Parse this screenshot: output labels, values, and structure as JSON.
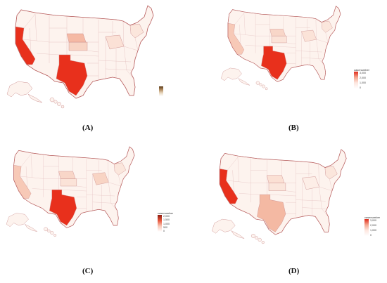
{
  "panels": [
    {
      "label": "(A)",
      "legend": {
        "title": "",
        "ticks": [
          "",
          "",
          "",
          ""
        ],
        "palette": "brown"
      },
      "fill": {
        "west_coast": "#e8301c",
        "texas": "#e8301c",
        "nebraska": "#f5b9a4",
        "kansas": "#f8d4c4",
        "ohio_valley": "#fbe1d6",
        "northeast": "#fbe6dc",
        "rest": "#fdf3ee"
      }
    },
    {
      "label": "(B)",
      "legend": {
        "title": "casenumber",
        "ticks": [
          "3,000",
          "2,000",
          "1,000",
          "0"
        ],
        "palette": "red"
      },
      "fill": {
        "west_coast": "#f7c9b7",
        "texas": "#e8301c",
        "nebraska": "#f8d6c8",
        "kansas": "#fbe3d8",
        "ohio_valley": "#fbe3d8",
        "northeast": "#fbe6dc",
        "rest": "#fdf3ee"
      }
    },
    {
      "label": "(C)",
      "legend": {
        "title": "casenumber",
        "ticks": [
          "2,000",
          "1,500",
          "1,000",
          "500",
          "0"
        ],
        "palette": "darkred"
      },
      "fill": {
        "west_coast": "#f7c9b7",
        "texas": "#e8301c",
        "nebraska": "#f8d6c8",
        "kansas": "#fbe3d8",
        "ohio_valley": "#f8d4c4",
        "northeast": "#fbe6dc",
        "rest": "#fdf3ee"
      }
    },
    {
      "label": "(D)",
      "legend": {
        "title": "casenumber",
        "ticks": [
          "3,000",
          "2,000",
          "1,000",
          "0"
        ],
        "palette": "red"
      },
      "fill": {
        "west_coast": "#e8301c",
        "texas": "#f4b9a3",
        "nebraska": "#fbe0d4",
        "kansas": "#fbe6dc",
        "ohio_valley": "#fdeee7",
        "northeast": "#fbe6dc",
        "rest": "#fdf3ee"
      }
    }
  ]
}
